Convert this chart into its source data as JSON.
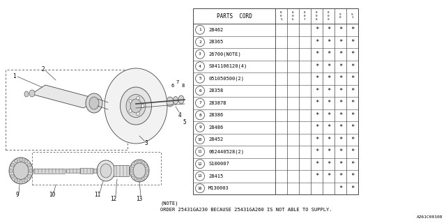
{
  "bg_color": "#ffffff",
  "col_header": "PARTS  CORD",
  "year_cols": [
    "8\n0\n5",
    "8\n0\n6",
    "8\n0\n7",
    "8\n0\n8",
    "8\n0\n9",
    "9\n0",
    "9\n1"
  ],
  "parts": [
    {
      "num": "1",
      "code": "28462",
      "stars": [
        0,
        0,
        0,
        1,
        1,
        1,
        1
      ]
    },
    {
      "num": "2",
      "code": "28365",
      "stars": [
        0,
        0,
        0,
        1,
        1,
        1,
        1
      ]
    },
    {
      "num": "3",
      "code": "26700(NOTE)",
      "stars": [
        0,
        0,
        0,
        1,
        1,
        1,
        1
      ]
    },
    {
      "num": "4",
      "code": "S041106120(4)",
      "stars": [
        0,
        0,
        0,
        1,
        1,
        1,
        1
      ]
    },
    {
      "num": "5",
      "code": "051050500(2)",
      "stars": [
        0,
        0,
        0,
        1,
        1,
        1,
        1
      ]
    },
    {
      "num": "6",
      "code": "28358",
      "stars": [
        0,
        0,
        0,
        1,
        1,
        1,
        1
      ]
    },
    {
      "num": "7",
      "code": "28387B",
      "stars": [
        0,
        0,
        0,
        1,
        1,
        1,
        1
      ]
    },
    {
      "num": "8",
      "code": "28386",
      "stars": [
        0,
        0,
        0,
        1,
        1,
        1,
        1
      ]
    },
    {
      "num": "9",
      "code": "28486",
      "stars": [
        0,
        0,
        0,
        1,
        1,
        1,
        1
      ]
    },
    {
      "num": "10",
      "code": "28452",
      "stars": [
        0,
        0,
        0,
        1,
        1,
        1,
        1
      ]
    },
    {
      "num": "11",
      "code": "062440528(2)",
      "stars": [
        0,
        0,
        0,
        1,
        1,
        1,
        1
      ]
    },
    {
      "num": "12",
      "code": "S100007",
      "stars": [
        0,
        0,
        0,
        1,
        1,
        1,
        1
      ]
    },
    {
      "num": "13",
      "code": "28415",
      "stars": [
        0,
        0,
        0,
        1,
        1,
        1,
        1
      ]
    },
    {
      "num": "16",
      "code": "M130003",
      "stars": [
        0,
        0,
        0,
        0,
        0,
        1,
        1
      ]
    }
  ],
  "note_line1": "(NOTE)",
  "note_line2": "ORDER 25431GA230 BECAUSE 25431GA260 IS NOT ABLE TO SUPPLY.",
  "code_ref": "A261C00108",
  "lc": "#444444",
  "tc": "#000000"
}
